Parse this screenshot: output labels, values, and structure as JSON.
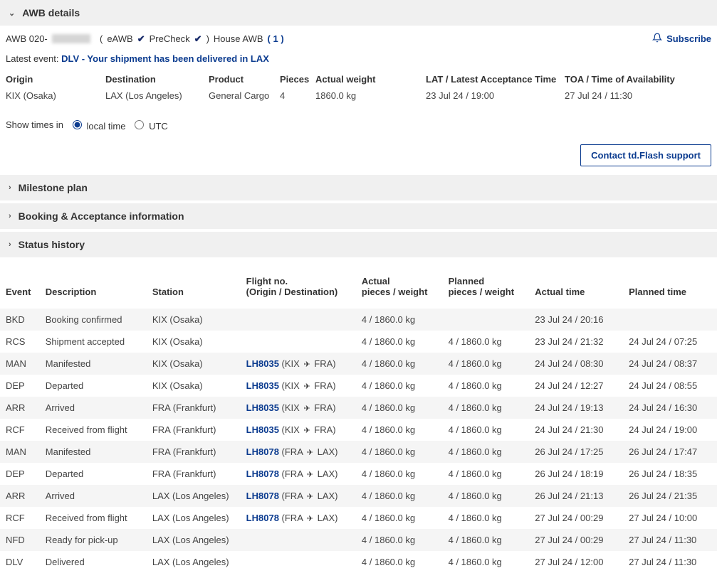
{
  "colors": {
    "link": "#0b3b8f",
    "section_bg": "#f0f0f0",
    "row_alt_bg": "#f5f5f5",
    "text": "#333333",
    "text_muted": "#444444"
  },
  "header": {
    "title": "AWB details",
    "awb_prefix": "AWB 020-",
    "eawb_label": "eAWB",
    "precheck_label": "PreCheck",
    "house_awb_label": "House AWB",
    "house_awb_count": "( 1 )",
    "subscribe_label": "Subscribe"
  },
  "latest_event": {
    "label": "Latest event:",
    "text": "DLV - Your shipment has been delivered in LAX"
  },
  "details": {
    "origin": {
      "label": "Origin",
      "value": "KIX (Osaka)"
    },
    "destination": {
      "label": "Destination",
      "value": "LAX (Los Angeles)"
    },
    "product": {
      "label": "Product",
      "value": "General Cargo"
    },
    "pieces": {
      "label": "Pieces",
      "value": "4"
    },
    "actual_weight": {
      "label": "Actual weight",
      "value": "1860.0 kg"
    },
    "lat": {
      "label": "LAT / Latest Acceptance Time",
      "value": "23 Jul 24 / 19:00"
    },
    "toa": {
      "label": "TOA / Time of Availability",
      "value": "27 Jul 24 / 11:30"
    }
  },
  "time_toggle": {
    "label": "Show times in",
    "local": "local time",
    "utc": "UTC",
    "selected": "local"
  },
  "contact_button": "Contact td.Flash support",
  "sections": {
    "milestone": "Milestone plan",
    "booking": "Booking & Acceptance information",
    "status": "Status history"
  },
  "history": {
    "columns": {
      "event": "Event",
      "description": "Description",
      "station": "Station",
      "flight_line1": "Flight no.",
      "flight_line2": "(Origin / Destination)",
      "actual_line1": "Actual",
      "actual_line2": "pieces / weight",
      "planned_line1": "Planned",
      "planned_line2": "pieces / weight",
      "actual_time": "Actual time",
      "planned_time": "Planned time"
    },
    "rows": [
      {
        "event": "BKD",
        "description": "Booking confirmed",
        "station": "KIX (Osaka)",
        "flight": "",
        "route_from": "",
        "route_to": "",
        "actual_pw": "4 / 1860.0 kg",
        "planned_pw": "",
        "actual_time": "23 Jul 24 / 20:16",
        "planned_time": ""
      },
      {
        "event": "RCS",
        "description": "Shipment accepted",
        "station": "KIX (Osaka)",
        "flight": "",
        "route_from": "",
        "route_to": "",
        "actual_pw": "4 / 1860.0 kg",
        "planned_pw": "4 / 1860.0 kg",
        "actual_time": "23 Jul 24 / 21:32",
        "planned_time": "24 Jul 24 / 07:25"
      },
      {
        "event": "MAN",
        "description": "Manifested",
        "station": "KIX (Osaka)",
        "flight": "LH8035",
        "route_from": "KIX",
        "route_to": "FRA",
        "actual_pw": "4 / 1860.0 kg",
        "planned_pw": "4 / 1860.0 kg",
        "actual_time": "24 Jul 24 / 08:30",
        "planned_time": "24 Jul 24 / 08:37"
      },
      {
        "event": "DEP",
        "description": "Departed",
        "station": "KIX (Osaka)",
        "flight": "LH8035",
        "route_from": "KIX",
        "route_to": "FRA",
        "actual_pw": "4 / 1860.0 kg",
        "planned_pw": "4 / 1860.0 kg",
        "actual_time": "24 Jul 24 / 12:27",
        "planned_time": "24 Jul 24 / 08:55"
      },
      {
        "event": "ARR",
        "description": "Arrived",
        "station": "FRA (Frankfurt)",
        "flight": "LH8035",
        "route_from": "KIX",
        "route_to": "FRA",
        "actual_pw": "4 / 1860.0 kg",
        "planned_pw": "4 / 1860.0 kg",
        "actual_time": "24 Jul 24 / 19:13",
        "planned_time": "24 Jul 24 / 16:30"
      },
      {
        "event": "RCF",
        "description": "Received from flight",
        "station": "FRA (Frankfurt)",
        "flight": "LH8035",
        "route_from": "KIX",
        "route_to": "FRA",
        "actual_pw": "4 / 1860.0 kg",
        "planned_pw": "4 / 1860.0 kg",
        "actual_time": "24 Jul 24 / 21:30",
        "planned_time": "24 Jul 24 / 19:00"
      },
      {
        "event": "MAN",
        "description": "Manifested",
        "station": "FRA (Frankfurt)",
        "flight": "LH8078",
        "route_from": "FRA",
        "route_to": "LAX",
        "actual_pw": "4 / 1860.0 kg",
        "planned_pw": "4 / 1860.0 kg",
        "actual_time": "26 Jul 24 / 17:25",
        "planned_time": "26 Jul 24 / 17:47"
      },
      {
        "event": "DEP",
        "description": "Departed",
        "station": "FRA (Frankfurt)",
        "flight": "LH8078",
        "route_from": "FRA",
        "route_to": "LAX",
        "actual_pw": "4 / 1860.0 kg",
        "planned_pw": "4 / 1860.0 kg",
        "actual_time": "26 Jul 24 / 18:19",
        "planned_time": "26 Jul 24 / 18:35"
      },
      {
        "event": "ARR",
        "description": "Arrived",
        "station": "LAX (Los Angeles)",
        "flight": "LH8078",
        "route_from": "FRA",
        "route_to": "LAX",
        "actual_pw": "4 / 1860.0 kg",
        "planned_pw": "4 / 1860.0 kg",
        "actual_time": "26 Jul 24 / 21:13",
        "planned_time": "26 Jul 24 / 21:35"
      },
      {
        "event": "RCF",
        "description": "Received from flight",
        "station": "LAX (Los Angeles)",
        "flight": "LH8078",
        "route_from": "FRA",
        "route_to": "LAX",
        "actual_pw": "4 / 1860.0 kg",
        "planned_pw": "4 / 1860.0 kg",
        "actual_time": "27 Jul 24 / 00:29",
        "planned_time": "27 Jul 24 / 10:00"
      },
      {
        "event": "NFD",
        "description": "Ready for pick-up",
        "station": "LAX (Los Angeles)",
        "flight": "",
        "route_from": "",
        "route_to": "",
        "actual_pw": "4 / 1860.0 kg",
        "planned_pw": "4 / 1860.0 kg",
        "actual_time": "27 Jul 24 / 00:29",
        "planned_time": "27 Jul 24 / 11:30"
      },
      {
        "event": "DLV",
        "description": "Delivered",
        "station": "LAX (Los Angeles)",
        "flight": "",
        "route_from": "",
        "route_to": "",
        "actual_pw": "4 / 1860.0 kg",
        "planned_pw": "4 / 1860.0 kg",
        "actual_time": "27 Jul 24 / 12:00",
        "planned_time": "27 Jul 24 / 11:30"
      }
    ]
  }
}
